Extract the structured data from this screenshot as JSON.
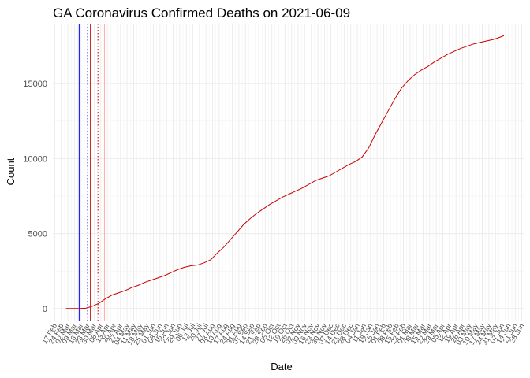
{
  "chart_data": {
    "type": "line",
    "title": "GA Coronavirus Confirmed Deaths on 2021-06-09",
    "xlabel": "Date",
    "ylabel": "Count",
    "x_range": [
      "2020-02-15",
      "2021-06-30"
    ],
    "ylim": [
      -800,
      19000
    ],
    "y_ticks": [
      0,
      5000,
      10000,
      15000
    ],
    "x_tick_labels": [
      "17 Feb",
      "24 Feb",
      "02 Mar",
      "09 Mar",
      "16 Mar",
      "23 Mar",
      "30 Mar",
      "06 Apr",
      "13 Apr",
      "20 Apr",
      "27 Apr",
      "04 May",
      "11 May",
      "18 May",
      "25 May",
      "01 Jun",
      "08 Jun",
      "15 Jun",
      "22 Jun",
      "29 Jun",
      "06 Jul",
      "13 Jul",
      "20 Jul",
      "27 Jul",
      "03 Aug",
      "10 Aug",
      "17 Aug",
      "24 Aug",
      "31 Aug",
      "07 Sep",
      "14 Sep",
      "21 Sep",
      "28 Sep",
      "05 Oct",
      "12 Oct",
      "19 Oct",
      "26 Oct",
      "02 Nov",
      "09 Nov",
      "16 Nov",
      "23 Nov",
      "30 Nov",
      "07 Dec",
      "14 Dec",
      "21 Dec",
      "28 Dec",
      "04 Jan",
      "11 Jan",
      "18 Jan",
      "25 Jan",
      "01 Feb",
      "08 Feb",
      "15 Feb",
      "22 Feb",
      "01 Mar",
      "08 Mar",
      "15 Mar",
      "22 Mar",
      "29 Mar",
      "05 Apr",
      "12 Apr",
      "19 Apr",
      "26 Apr",
      "03 May",
      "10 May",
      "17 May",
      "24 May",
      "31 May",
      "07 Jun",
      "14 Jun",
      "21 Jun",
      "28 Jun"
    ],
    "grid": true,
    "reference_lines": [
      {
        "date": "2020-03-14",
        "color": "#0000ff",
        "style": "solid"
      },
      {
        "date": "2020-03-23",
        "color": "#0000ff",
        "style": "dotted"
      },
      {
        "date": "2020-03-26",
        "color": "#cc0000",
        "style": "solid"
      },
      {
        "date": "2020-04-03",
        "color": "#cc0000",
        "style": "dotted"
      },
      {
        "date": "2020-04-10",
        "color": "#ffaaaa",
        "style": "solid"
      }
    ],
    "series": [
      {
        "color": "#cc0000",
        "points": [
          [
            "2020-02-29",
            0
          ],
          [
            "2020-03-07",
            0
          ],
          [
            "2020-03-14",
            0
          ],
          [
            "2020-03-21",
            20
          ],
          [
            "2020-03-28",
            150
          ],
          [
            "2020-04-04",
            350
          ],
          [
            "2020-04-11",
            650
          ],
          [
            "2020-04-18",
            900
          ],
          [
            "2020-04-25",
            1050
          ],
          [
            "2020-05-02",
            1200
          ],
          [
            "2020-05-09",
            1400
          ],
          [
            "2020-05-16",
            1550
          ],
          [
            "2020-05-23",
            1750
          ],
          [
            "2020-05-30",
            1900
          ],
          [
            "2020-06-06",
            2050
          ],
          [
            "2020-06-13",
            2200
          ],
          [
            "2020-06-20",
            2400
          ],
          [
            "2020-06-27",
            2600
          ],
          [
            "2020-07-04",
            2750
          ],
          [
            "2020-07-11",
            2850
          ],
          [
            "2020-07-18",
            2900
          ],
          [
            "2020-07-25",
            3050
          ],
          [
            "2020-08-01",
            3250
          ],
          [
            "2020-08-08",
            3700
          ],
          [
            "2020-08-15",
            4100
          ],
          [
            "2020-08-22",
            4600
          ],
          [
            "2020-08-29",
            5100
          ],
          [
            "2020-09-05",
            5600
          ],
          [
            "2020-09-12",
            6000
          ],
          [
            "2020-09-19",
            6350
          ],
          [
            "2020-09-26",
            6650
          ],
          [
            "2020-10-03",
            6950
          ],
          [
            "2020-10-10",
            7200
          ],
          [
            "2020-10-17",
            7450
          ],
          [
            "2020-10-24",
            7650
          ],
          [
            "2020-10-31",
            7850
          ],
          [
            "2020-11-07",
            8050
          ],
          [
            "2020-11-14",
            8300
          ],
          [
            "2020-11-21",
            8550
          ],
          [
            "2020-11-28",
            8700
          ],
          [
            "2020-12-05",
            8850
          ],
          [
            "2020-12-12",
            9100
          ],
          [
            "2020-12-19",
            9350
          ],
          [
            "2020-12-26",
            9600
          ],
          [
            "2021-01-02",
            9800
          ],
          [
            "2021-01-09",
            10100
          ],
          [
            "2021-01-16",
            10700
          ],
          [
            "2021-01-23",
            11600
          ],
          [
            "2021-01-30",
            12400
          ],
          [
            "2021-02-06",
            13200
          ],
          [
            "2021-02-13",
            14000
          ],
          [
            "2021-02-20",
            14700
          ],
          [
            "2021-02-27",
            15200
          ],
          [
            "2021-03-06",
            15600
          ],
          [
            "2021-03-13",
            15900
          ],
          [
            "2021-03-20",
            16150
          ],
          [
            "2021-03-27",
            16450
          ],
          [
            "2021-04-03",
            16700
          ],
          [
            "2021-04-10",
            16950
          ],
          [
            "2021-04-17",
            17150
          ],
          [
            "2021-04-24",
            17350
          ],
          [
            "2021-05-01",
            17500
          ],
          [
            "2021-05-08",
            17650
          ],
          [
            "2021-05-15",
            17750
          ],
          [
            "2021-05-22",
            17850
          ],
          [
            "2021-05-29",
            17950
          ],
          [
            "2021-06-05",
            18100
          ],
          [
            "2021-06-09",
            18200
          ]
        ]
      }
    ]
  }
}
